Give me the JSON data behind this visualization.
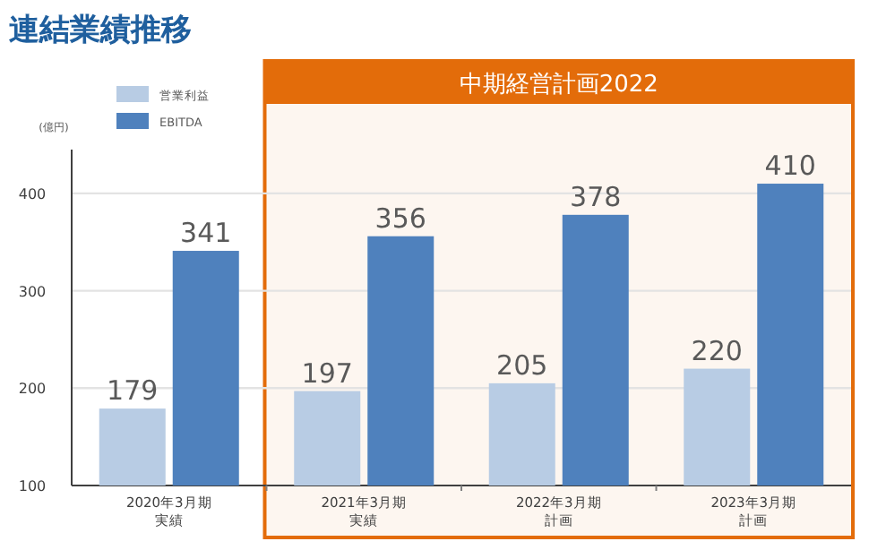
{
  "chart_data": {
    "type": "bar",
    "title": "連結業績推移",
    "ylabel": "(億円)",
    "categories": [
      "2020年3月期実績",
      "2021年3月期実績",
      "2022年3月期計画",
      "2023年3月期計画"
    ],
    "series": [
      {
        "name": "営業利益",
        "color": "#b8cce4",
        "values": [
          179,
          197,
          205,
          220
        ]
      },
      {
        "name": "EBITDA",
        "color": "#4f81bd",
        "values": [
          341,
          356,
          378,
          410
        ]
      }
    ],
    "ylim": [
      100,
      445
    ],
    "yticks": [
      100,
      200,
      300,
      400
    ],
    "grid": "y",
    "legend": "top left",
    "data_labels": true,
    "bands": [
      {
        "axis": "x",
        "from": "2021年3月期実績",
        "to": "2023年3月期計画",
        "label": "中期経営計画2022",
        "color": "#e36c0a"
      }
    ]
  }
}
